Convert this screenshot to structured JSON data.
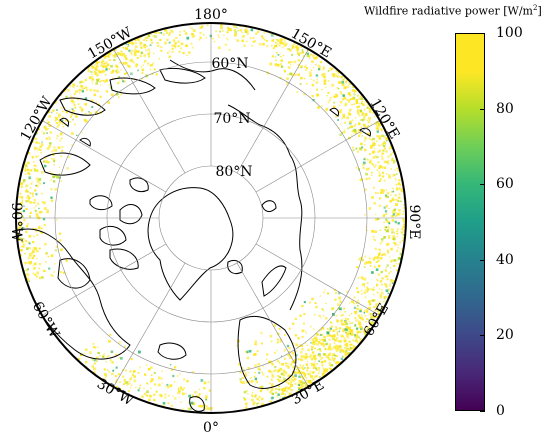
{
  "colorbar": {
    "title_text": "Wildfire radiative power [W/m",
    "title_sup": "2",
    "title_end": "]",
    "min": 0,
    "max": 100,
    "ticks": [
      "0",
      "20",
      "40",
      "60",
      "80",
      "100"
    ],
    "colormap": "viridis"
  },
  "map": {
    "projection": "north-polar-stereographic",
    "longitude_labels": {
      "lon_180": "180°",
      "lon_150w": "150°W",
      "lon_150e": "150°E",
      "lon_120w": "120°W",
      "lon_120e": "120°E",
      "lon_90w": "90°W",
      "lon_90e": "90°E",
      "lon_60w": "60°W",
      "lon_60e": "60°E",
      "lon_30w": "30°W",
      "lon_30e": "30°E",
      "lon_0": "0°"
    },
    "latitude_labels": {
      "lat_60": "60°N",
      "lat_70": "70°N",
      "lat_80": "80°N"
    },
    "fire_color_dominant": "#fde725",
    "fire_color_secondary": "#35b779"
  }
}
